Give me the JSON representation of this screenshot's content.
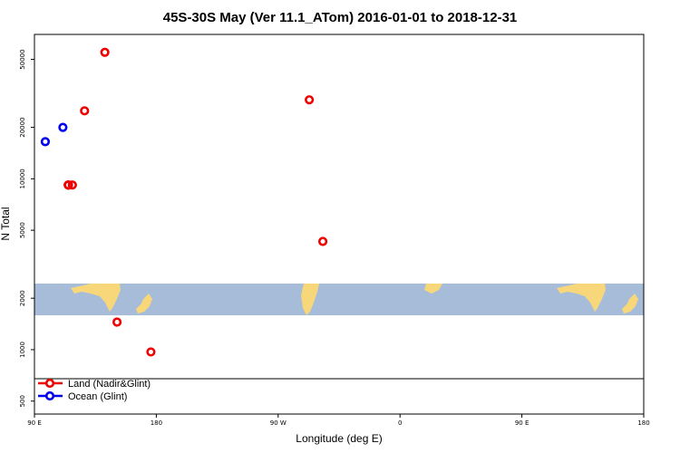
{
  "chart_data": {
    "type": "scatter",
    "title": "45S-30S May (Ver 11.1_ATom)   2016-01-01 to 2018-12-31",
    "xlabel": "Longitude (deg E)",
    "ylabel": "N Total",
    "y_scale": "log",
    "xlim": [
      90,
      540
    ],
    "ylim": [
      420,
      70000
    ],
    "x_ticks": [
      {
        "value": 90,
        "label": "90 E"
      },
      {
        "value": 180,
        "label": "180"
      },
      {
        "value": 270,
        "label": "90 W"
      },
      {
        "value": 360,
        "label": "0"
      },
      {
        "value": 450,
        "label": "90 E"
      },
      {
        "value": 540,
        "label": "180"
      }
    ],
    "y_ticks": [
      {
        "value": 500,
        "label": "500"
      },
      {
        "value": 1000,
        "label": "1000"
      },
      {
        "value": 2000,
        "label": "2000"
      },
      {
        "value": 5000,
        "label": "5000"
      },
      {
        "value": 10000,
        "label": "10000"
      },
      {
        "value": 20000,
        "label": "20000"
      },
      {
        "value": 50000,
        "label": "50000"
      }
    ],
    "legend_position": "bottom-left",
    "series": [
      {
        "name": "Land (Nadir&Glint)",
        "color": "#ee0000",
        "points": [
          {
            "x": 118,
            "y": 9200
          },
          {
            "x": 127,
            "y": 25000
          },
          {
            "x": 142,
            "y": 55000
          },
          {
            "x": 151,
            "y": 1450
          },
          {
            "x": 176,
            "y": 970
          },
          {
            "x": 293,
            "y": 29000
          },
          {
            "x": 303,
            "y": 4300
          },
          {
            "x": 115,
            "y": 9200
          },
          {
            "x": 115,
            "y": 9200
          },
          {
            "x": 115,
            "y": 9200
          },
          {
            "x": 115,
            "y": 9200
          },
          {
            "x": 115,
            "y": 9200
          }
        ]
      },
      {
        "name": "Ocean (Glint)",
        "color": "#0000ee",
        "points": [
          {
            "x": 98,
            "y": 16500
          },
          {
            "x": 111,
            "y": 20000
          }
        ]
      }
    ]
  },
  "colors": {
    "background": "#ffffff",
    "map_ocean": "#a7bcd9",
    "map_land": "#f8d77a",
    "frame": "#000000"
  }
}
